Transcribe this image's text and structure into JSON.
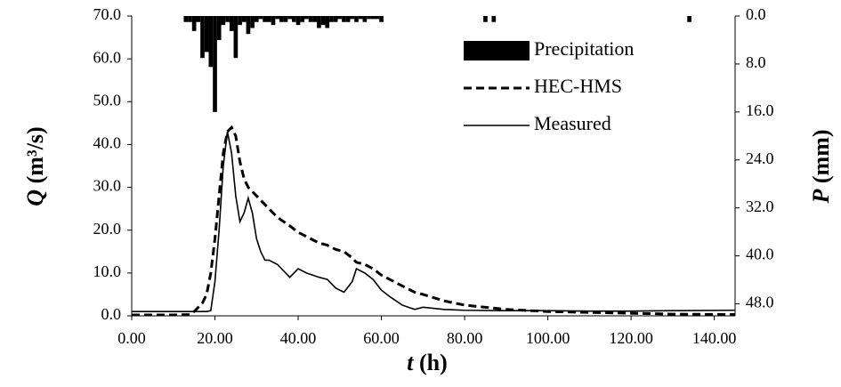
{
  "chart_data": {
    "type": "hydrograph",
    "xlabel_symbol": "t",
    "xlabel_unit": "(h)",
    "ylabel_symbol": "Q",
    "ylabel_unit": "(m³/s)",
    "y2label_symbol": "P",
    "y2label_unit": "(mm)",
    "xlim": [
      0,
      145
    ],
    "xticks": [
      {
        "value": 0,
        "label": "0.00"
      },
      {
        "value": 20,
        "label": "20.00"
      },
      {
        "value": 40,
        "label": "40.00"
      },
      {
        "value": 60,
        "label": "60.00"
      },
      {
        "value": 80,
        "label": "80.00"
      },
      {
        "value": 100,
        "label": "100.00"
      },
      {
        "value": 120,
        "label": "120.00"
      },
      {
        "value": 140,
        "label": "140.00"
      }
    ],
    "ylim": [
      0,
      70
    ],
    "yticks": [
      {
        "value": 0,
        "label": "0.0"
      },
      {
        "value": 10,
        "label": "10.0"
      },
      {
        "value": 20,
        "label": "20.0"
      },
      {
        "value": 30,
        "label": "30.0"
      },
      {
        "value": 40,
        "label": "40.0"
      },
      {
        "value": 50,
        "label": "50.0"
      },
      {
        "value": 60,
        "label": "60.0"
      },
      {
        "value": 70,
        "label": "70.0"
      }
    ],
    "y2lim": [
      0,
      50
    ],
    "y2_inverted": true,
    "y2ticks": [
      {
        "value": 0,
        "label": "0.0"
      },
      {
        "value": 8,
        "label": "8.0"
      },
      {
        "value": 16,
        "label": "16.0"
      },
      {
        "value": 24,
        "label": "24.0"
      },
      {
        "value": 32,
        "label": "32.0"
      },
      {
        "value": 40,
        "label": "40.0"
      },
      {
        "value": 48,
        "label": "48.0"
      }
    ],
    "legend": "upper right",
    "x": [
      0,
      10,
      14,
      15,
      17,
      18,
      19,
      20,
      21,
      22,
      23,
      24,
      25,
      26,
      27,
      28,
      29,
      30,
      31,
      32,
      33,
      35,
      38,
      40,
      42,
      45,
      47,
      49,
      51,
      53,
      54,
      56,
      58,
      60,
      62,
      65,
      68,
      70,
      75,
      80,
      90,
      100,
      110,
      120,
      130,
      145
    ],
    "series": [
      {
        "name": "Precipitation",
        "style": "bar",
        "axis": "y2",
        "color": "#000000",
        "x": [
          13,
          14,
          15,
          16,
          17,
          18,
          19,
          20,
          21,
          22,
          23,
          24,
          25,
          26,
          27,
          28,
          29,
          30,
          31,
          32,
          33,
          34,
          35,
          36,
          37,
          38,
          39,
          40,
          41,
          42,
          43,
          44,
          45,
          46,
          47,
          48,
          49,
          50,
          51,
          52,
          53,
          54,
          55,
          56,
          57,
          58,
          59,
          60,
          85,
          87,
          134
        ],
        "values": [
          1.0,
          1.0,
          2.5,
          1.0,
          7.0,
          6.0,
          8.5,
          16.0,
          4.0,
          1.5,
          1.0,
          2.5,
          7.0,
          1.5,
          1.0,
          3.0,
          2.0,
          1.0,
          0.5,
          1.0,
          1.0,
          1.5,
          0.5,
          1.0,
          1.0,
          0.5,
          1.0,
          1.5,
          1.0,
          0.5,
          1.0,
          1.0,
          2.0,
          1.5,
          2.0,
          1.0,
          1.0,
          0.5,
          1.0,
          1.0,
          0.5,
          1.0,
          0.5,
          1.0,
          0.5,
          0.5,
          0.5,
          1.0,
          1.0,
          1.0,
          1.0
        ]
      },
      {
        "name": "HEC-HMS",
        "style": "dashed",
        "color": "#000000",
        "values": [
          0.2,
          0.2,
          0.3,
          1,
          3,
          5,
          10,
          18,
          28,
          38,
          43,
          44,
          42,
          36,
          32,
          30,
          29,
          28,
          27,
          26,
          25,
          23,
          21,
          19.5,
          18.5,
          17,
          16.5,
          15.5,
          15,
          13.5,
          12.5,
          12,
          11,
          9.5,
          8.5,
          7,
          5.5,
          5,
          3.5,
          2.5,
          1.5,
          1,
          0.8,
          0.6,
          0.4,
          0.3
        ]
      },
      {
        "name": "Measured",
        "style": "solid",
        "color": "#000000",
        "values": [
          1,
          1,
          1,
          1,
          1,
          1,
          1.2,
          8,
          20,
          35,
          43,
          38,
          28,
          22,
          24,
          27.5,
          24,
          18,
          15,
          13,
          13,
          12,
          9,
          11,
          10,
          9,
          8.5,
          6.5,
          5.5,
          8,
          11,
          10,
          8.5,
          6,
          4.5,
          2.5,
          1.5,
          2,
          1.5,
          1.3,
          1.2,
          1.2,
          1.1,
          1.1,
          1.2,
          1.3
        ]
      }
    ]
  }
}
